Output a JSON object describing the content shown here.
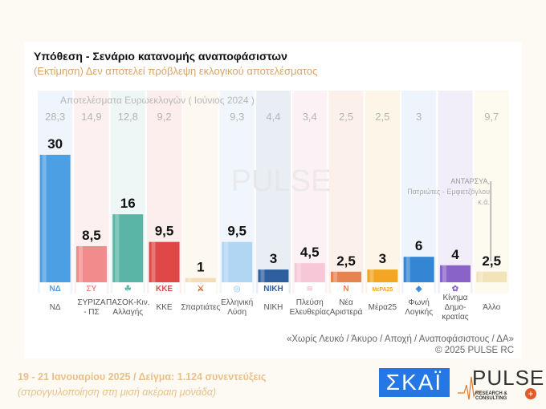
{
  "header": {
    "title": "Υπόθεση - Σενάριο κατανομής αναποφάσιστων",
    "subtitle": "(Εκτίμηση)   Δεν αποτελεί πρόβλεψη εκλογικού αποτελέσματος"
  },
  "chart_data": {
    "type": "bar",
    "categories": [
      "ΝΔ",
      "ΣΥΡΙΖΑ - ΠΣ",
      "ΠΑΣΟΚ-Κιν. Αλλαγής",
      "ΚΚΕ",
      "Σπαρτιάτες",
      "Ελληνική Λύση",
      "ΝΙΚΗ",
      "Πλεύση Ελευθερίας",
      "Νέα Αριστερά",
      "Μέρα25",
      "Φωνή Λογικής",
      "Κίνημα Δημο- κρατίας",
      "Άλλο"
    ],
    "values": [
      30,
      8.5,
      16,
      9.5,
      1,
      9.5,
      3,
      4.5,
      2.5,
      3,
      6,
      4,
      2.5
    ],
    "value_labels": [
      "30",
      "8,5",
      "16",
      "9,5",
      "1",
      "9,5",
      "3",
      "4,5",
      "2,5",
      "3",
      "6",
      "4",
      "2,5"
    ],
    "euro_header": "Αποτελέσματα Ευρωεκλογών  ( Ιούνιος 2024 )",
    "euro_2024": [
      "28,3",
      "14,9",
      "12,8",
      "9,2",
      "",
      "9,3",
      "4,4",
      "3,4",
      "2,5",
      "2,5",
      "3",
      "",
      "9,7"
    ],
    "colors": [
      "#4d9fe3",
      "#f28b8b",
      "#5bb5a6",
      "#e04848",
      "#f2ddb8",
      "#b0d6f4",
      "#2f5f9e",
      "#f6c7d6",
      "#e7834f",
      "#f2a623",
      "#3486d4",
      "#8a63c8",
      "#f2e4b8"
    ],
    "column_tints": [
      "#eef5fc",
      "#fdf0f0",
      "#eef7f5",
      "#fdeeee",
      "#fdf8f0",
      "#f0f6fc",
      "#e9eef5",
      "#fcf2f6",
      "#fcf1ea",
      "#fdf6e8",
      "#edf4fb",
      "#f2eef9",
      "#fdfaf0"
    ],
    "logos": [
      "ΝΔ",
      "ΣΥ",
      "☘",
      "ΚΚΕ",
      "⚔",
      "◎",
      "ΝΙΚΗ",
      "≋",
      "Ν",
      "ΜέΡΑ25",
      "◈",
      "✿",
      ""
    ],
    "callout": [
      "ΑΝΤΑΡΣΥΑ,",
      "Πατριώτες - Εμφιετζόγλου",
      "κ.ά."
    ],
    "ylim": [
      0,
      30
    ]
  },
  "note": {
    "line1": "«Χωρίς Λευκό / Άκυρο / Αποχή / Αναποφάσιστους / ΔΑ»",
    "line2": "©  2025  PULSE RC"
  },
  "footer": {
    "line1": "19 - 21 Ιανουαρίου 2025  /  Δείγμα:  1.124 συνεντεύξεις",
    "line2": "(στρογγυλοποίηση στη μισή ακέραιη μονάδα)"
  },
  "logos": {
    "skai": "ΣΚΑΪ",
    "pulse": "PULSE",
    "pulse_sub": "RESEARCH & CONSULTING",
    "zoom_icon": "+"
  }
}
